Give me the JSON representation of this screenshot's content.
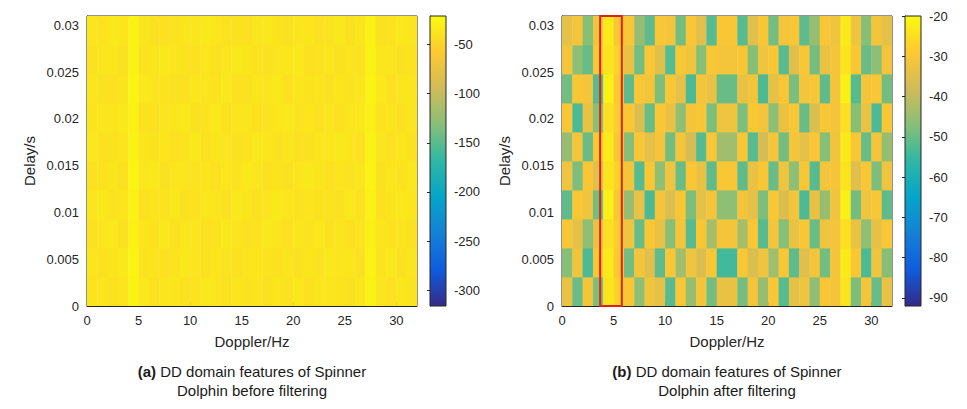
{
  "chart_data": [
    {
      "type": "heatmap",
      "caption_label": "(a)",
      "caption": "DD domain features of Spinner Dolphin before filtering",
      "x_label": "Doppler/Hz",
      "y_label": "Delay/s",
      "xlim": [
        0,
        32
      ],
      "xticks": [
        0,
        5,
        10,
        15,
        20,
        25,
        30
      ],
      "ylim": [
        0,
        0.031
      ],
      "yticks": [
        0,
        0.005,
        0.01,
        0.015,
        0.02,
        0.025,
        0.03
      ],
      "grid": false,
      "x": [
        0.5,
        1.5,
        2.5,
        3.5,
        4.5,
        5.5,
        6.5,
        7.5,
        8.5,
        9.5,
        10.5,
        11.5,
        12.5,
        13.5,
        14.5,
        15.5,
        16.5,
        17.5,
        18.5,
        19.5,
        20.5,
        21.5,
        22.5,
        23.5,
        24.5,
        25.5,
        26.5,
        27.5,
        28.5,
        29.5,
        30.5,
        31.5
      ],
      "y": [
        0.00155,
        0.00465,
        0.00775,
        0.01085,
        0.01395,
        0.01705,
        0.02015,
        0.02325,
        0.02635,
        0.02945
      ],
      "values": [
        [
          -38,
          -36,
          -40,
          -37,
          -28,
          -35,
          -39,
          -37,
          -36,
          -40,
          -38,
          -35,
          -37,
          -39,
          -36,
          -38,
          -37,
          -39,
          -36,
          -38,
          -35,
          -40,
          -37,
          -36,
          -38,
          -39,
          -36,
          -28,
          -37,
          -40,
          -36,
          -38
        ],
        [
          -36,
          -39,
          -37,
          -35,
          -27,
          -38,
          -36,
          -40,
          -38,
          -35,
          -37,
          -39,
          -36,
          -38,
          -40,
          -37,
          -36,
          -38,
          -40,
          -37,
          -39,
          -36,
          -38,
          -35,
          -37,
          -36,
          -39,
          -27,
          -38,
          -35,
          -39,
          -37
        ],
        [
          -40,
          -37,
          -35,
          -39,
          -29,
          -36,
          -38,
          -35,
          -39,
          -37,
          -36,
          -40,
          -38,
          -35,
          -37,
          -39,
          -38,
          -35,
          -37,
          -40,
          -36,
          -38,
          -35,
          -39,
          -36,
          -40,
          -37,
          -29,
          -36,
          -38,
          -37,
          -40
        ],
        [
          -37,
          -35,
          -38,
          -36,
          -28,
          -40,
          -37,
          -38,
          -35,
          -39,
          -40,
          -36,
          -37,
          -39,
          -35,
          -36,
          -39,
          -37,
          -35,
          -36,
          -38,
          -37,
          -40,
          -38,
          -39,
          -35,
          -38,
          -28,
          -40,
          -37,
          -35,
          -36
        ],
        [
          -39,
          -38,
          -36,
          -40,
          -27,
          -37,
          -35,
          -39,
          -37,
          -36,
          -38,
          -37,
          -40,
          -36,
          -38,
          -35,
          -37,
          -40,
          -38,
          -39,
          -37,
          -35,
          -36,
          -40,
          -37,
          -38,
          -36,
          -27,
          -39,
          -36,
          -38,
          -35
        ],
        [
          -35,
          -40,
          -39,
          -37,
          -28,
          -36,
          -38,
          -36,
          -40,
          -38,
          -35,
          -39,
          -36,
          -37,
          -39,
          -38,
          -35,
          -36,
          -39,
          -37,
          -40,
          -39,
          -37,
          -36,
          -35,
          -37,
          -40,
          -28,
          -37,
          -39,
          -36,
          -40
        ],
        [
          -38,
          -36,
          -37,
          -35,
          -29,
          -39,
          -40,
          -37,
          -36,
          -35,
          -39,
          -38,
          -35,
          -40,
          -36,
          -37,
          -40,
          -38,
          -36,
          -35,
          -38,
          -36,
          -39,
          -37,
          -40,
          -36,
          -35,
          -29,
          -38,
          -36,
          -40,
          -37
        ],
        [
          -36,
          -39,
          -40,
          -38,
          -27,
          -35,
          -37,
          -38,
          -39,
          -40,
          -36,
          -37,
          -38,
          -35,
          -40,
          -39,
          -36,
          -37,
          -35,
          -40,
          -36,
          -38,
          -37,
          -39,
          -36,
          -38,
          -37,
          -27,
          -35,
          -40,
          -37,
          -36
        ],
        [
          -40,
          -37,
          -36,
          -39,
          -28,
          -38,
          -36,
          -35,
          -37,
          -38,
          -40,
          -36,
          -39,
          -37,
          -35,
          -36,
          -38,
          -39,
          -37,
          -36,
          -35,
          -40,
          -38,
          -36,
          -39,
          -37,
          -38,
          -28,
          -36,
          -37,
          -39,
          -38
        ],
        [
          -37,
          -38,
          -35,
          -36,
          -28,
          -37,
          -39,
          -40,
          -38,
          -36,
          -37,
          -35,
          -36,
          -38,
          -39,
          -40,
          -37,
          -35,
          -38,
          -39,
          -37,
          -36,
          -40,
          -38,
          -35,
          -39,
          -36,
          -28,
          -39,
          -38,
          -35,
          -37
        ]
      ],
      "colorbar": {
        "lim": [
          -316,
          -21
        ],
        "ticks": [
          -300,
          -250,
          -200,
          -150,
          -100,
          -50
        ]
      }
    },
    {
      "type": "heatmap",
      "caption_label": "(b)",
      "caption": "DD domain features of Spinner Dolphin after filtering",
      "x_label": "Doppler/Hz",
      "y_label": "Delay/s",
      "xlim": [
        0,
        32
      ],
      "xticks": [
        0,
        5,
        10,
        15,
        20,
        25,
        30
      ],
      "ylim": [
        0,
        0.031
      ],
      "yticks": [
        0,
        0.005,
        0.01,
        0.015,
        0.02,
        0.025,
        0.03
      ],
      "grid": false,
      "x": [
        0.5,
        1.5,
        2.5,
        3.5,
        4.5,
        5.5,
        6.5,
        7.5,
        8.5,
        9.5,
        10.5,
        11.5,
        12.5,
        13.5,
        14.5,
        15.5,
        16.5,
        17.5,
        18.5,
        19.5,
        20.5,
        21.5,
        22.5,
        23.5,
        24.5,
        25.5,
        26.5,
        27.5,
        28.5,
        29.5,
        30.5,
        31.5
      ],
      "y": [
        0.00155,
        0.00465,
        0.00775,
        0.01085,
        0.01395,
        0.01705,
        0.02015,
        0.02325,
        0.02635,
        0.02945
      ],
      "values": [
        [
          -33,
          -50,
          -31,
          -48,
          -24,
          -27,
          -30,
          -46,
          -32,
          -34,
          -52,
          -30,
          -45,
          -31,
          -49,
          -33,
          -33,
          -49,
          -31,
          -45,
          -30,
          -52,
          -34,
          -32,
          -46,
          -30,
          -31,
          -24,
          -48,
          -31,
          -50,
          -33
        ],
        [
          -47,
          -32,
          -53,
          -30,
          -23,
          -29,
          -49,
          -31,
          -35,
          -51,
          -30,
          -44,
          -32,
          -36,
          -30,
          -54,
          -54,
          -30,
          -36,
          -32,
          -44,
          -30,
          -51,
          -35,
          -31,
          -49,
          -31,
          -23,
          -30,
          -53,
          -32,
          -47
        ],
        [
          -30,
          -34,
          -46,
          -33,
          -25,
          -28,
          -32,
          -50,
          -30,
          -33,
          -47,
          -31,
          -52,
          -30,
          -43,
          -31,
          -31,
          -43,
          -30,
          -52,
          -31,
          -47,
          -33,
          -30,
          -50,
          -32,
          -31,
          -25,
          -33,
          -46,
          -34,
          -30
        ],
        [
          -51,
          -30,
          -32,
          -49,
          -22,
          -30,
          -45,
          -33,
          -53,
          -31,
          -36,
          -30,
          -48,
          -34,
          -31,
          -46,
          -46,
          -31,
          -34,
          -48,
          -30,
          -36,
          -31,
          -53,
          -33,
          -45,
          -32,
          -22,
          -49,
          -32,
          -30,
          -51
        ],
        [
          -32,
          -48,
          -30,
          -35,
          -24,
          -27,
          -31,
          -52,
          -30,
          -46,
          -32,
          -50,
          -30,
          -33,
          -51,
          -30,
          -30,
          -51,
          -33,
          -30,
          -50,
          -32,
          -46,
          -30,
          -52,
          -31,
          -31,
          -24,
          -35,
          -30,
          -48,
          -32
        ],
        [
          -45,
          -31,
          -50,
          -30,
          -23,
          -30,
          -47,
          -30,
          -34,
          -31,
          -49,
          -31,
          -37,
          -52,
          -30,
          -44,
          -44,
          -30,
          -52,
          -37,
          -31,
          -49,
          -31,
          -34,
          -30,
          -47,
          -32,
          -23,
          -30,
          -50,
          -31,
          -45
        ],
        [
          -30,
          -53,
          -33,
          -47,
          -25,
          -28,
          -30,
          -36,
          -50,
          -30,
          -33,
          -46,
          -31,
          -30,
          -48,
          -32,
          -32,
          -48,
          -30,
          -31,
          -46,
          -33,
          -30,
          -50,
          -36,
          -30,
          -31,
          -25,
          -47,
          -33,
          -53,
          -30
        ],
        [
          -49,
          -30,
          -31,
          -52,
          -22,
          -29,
          -51,
          -30,
          -31,
          -48,
          -30,
          -34,
          -53,
          -31,
          -33,
          -50,
          -50,
          -33,
          -31,
          -53,
          -34,
          -30,
          -48,
          -31,
          -30,
          -51,
          -31,
          -22,
          -52,
          -31,
          -30,
          -49
        ],
        [
          -31,
          -46,
          -50,
          -30,
          -24,
          -27,
          -33,
          -49,
          -30,
          -35,
          -52,
          -30,
          -32,
          -47,
          -30,
          -31,
          -31,
          -30,
          -47,
          -32,
          -30,
          -52,
          -35,
          -30,
          -49,
          -33,
          -31,
          -24,
          -30,
          -50,
          -46,
          -31
        ],
        [
          -34,
          -31,
          -47,
          -32,
          -23,
          -30,
          -30,
          -45,
          -51,
          -30,
          -31,
          -49,
          -30,
          -35,
          -52,
          -30,
          -30,
          -52,
          -35,
          -30,
          -49,
          -31,
          -30,
          -51,
          -45,
          -30,
          -32,
          -23,
          -32,
          -47,
          -31,
          -34
        ]
      ],
      "colorbar": {
        "lim": [
          -92,
          -20
        ],
        "ticks": [
          -90,
          -80,
          -70,
          -60,
          -50,
          -40,
          -30,
          -20
        ]
      },
      "highlight": {
        "x": [
          3.7,
          5.8
        ],
        "y": [
          0,
          0.031
        ],
        "color": "#e0201c"
      }
    }
  ]
}
